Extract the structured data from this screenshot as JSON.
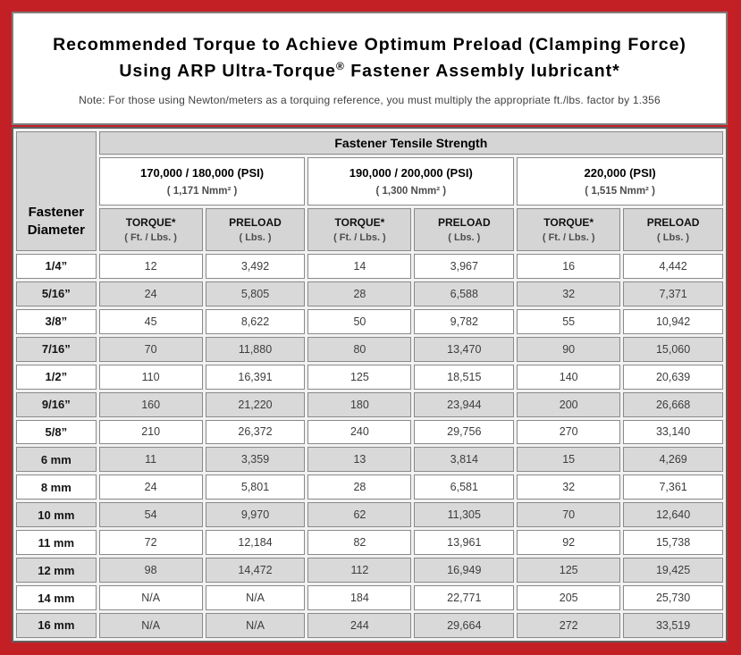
{
  "colors": {
    "frame_red": "#c32026",
    "header_gray": "#d5d5d5",
    "row_gray": "#d9d9d9",
    "row_white": "#ffffff",
    "cell_border_gray": "#8a8a8a"
  },
  "title": {
    "line1": "Recommended Torque to Achieve Optimum Preload (Clamping Force)",
    "line2_pre": "Using ARP Ultra-Torque",
    "line2_sup": "®",
    "line2_post": " Fastener Assembly lubricant*",
    "note": "Note: For those using Newton/meters as a torquing reference, you must multiply the appropriate ft./lbs. factor by 1.356"
  },
  "table": {
    "corner_header": "Fastener Diameter",
    "tensile_header": "Fastener Tensile Strength",
    "groups": [
      {
        "psi": "170,000 / 180,000 (PSI)",
        "nmm": "( 1,171 Nmm² )"
      },
      {
        "psi": "190,000 / 200,000 (PSI)",
        "nmm": "( 1,300 Nmm² )"
      },
      {
        "psi": "220,000 (PSI)",
        "nmm": "( 1,515 Nmm² )"
      }
    ],
    "sub_headers": {
      "torque_label": "TORQUE*",
      "torque_unit": "( Ft. / Lbs. )",
      "preload_label": "PRELOAD",
      "preload_unit": "( Lbs. )"
    },
    "rows": [
      {
        "diameter": "1/4”",
        "values": [
          "12",
          "3,492",
          "14",
          "3,967",
          "16",
          "4,442"
        ]
      },
      {
        "diameter": "5/16”",
        "values": [
          "24",
          "5,805",
          "28",
          "6,588",
          "32",
          "7,371"
        ]
      },
      {
        "diameter": "3/8”",
        "values": [
          "45",
          "8,622",
          "50",
          "9,782",
          "55",
          "10,942"
        ]
      },
      {
        "diameter": "7/16”",
        "values": [
          "70",
          "11,880",
          "80",
          "13,470",
          "90",
          "15,060"
        ]
      },
      {
        "diameter": "1/2”",
        "values": [
          "110",
          "16,391",
          "125",
          "18,515",
          "140",
          "20,639"
        ]
      },
      {
        "diameter": "9/16”",
        "values": [
          "160",
          "21,220",
          "180",
          "23,944",
          "200",
          "26,668"
        ]
      },
      {
        "diameter": "5/8”",
        "values": [
          "210",
          "26,372",
          "240",
          "29,756",
          "270",
          "33,140"
        ]
      },
      {
        "diameter": "6 mm",
        "values": [
          "11",
          "3,359",
          "13",
          "3,814",
          "15",
          "4,269"
        ]
      },
      {
        "diameter": "8 mm",
        "values": [
          "24",
          "5,801",
          "28",
          "6,581",
          "32",
          "7,361"
        ]
      },
      {
        "diameter": "10 mm",
        "values": [
          "54",
          "9,970",
          "62",
          "11,305",
          "70",
          "12,640"
        ]
      },
      {
        "diameter": "11 mm",
        "values": [
          "72",
          "12,184",
          "82",
          "13,961",
          "92",
          "15,738"
        ]
      },
      {
        "diameter": "12 mm",
        "values": [
          "98",
          "14,472",
          "112",
          "16,949",
          "125",
          "19,425"
        ]
      },
      {
        "diameter": "14 mm",
        "values": [
          "N/A",
          "N/A",
          "184",
          "22,771",
          "205",
          "25,730"
        ]
      },
      {
        "diameter": "16 mm",
        "values": [
          "N/A",
          "N/A",
          "244",
          "29,664",
          "272",
          "33,519"
        ]
      }
    ]
  }
}
